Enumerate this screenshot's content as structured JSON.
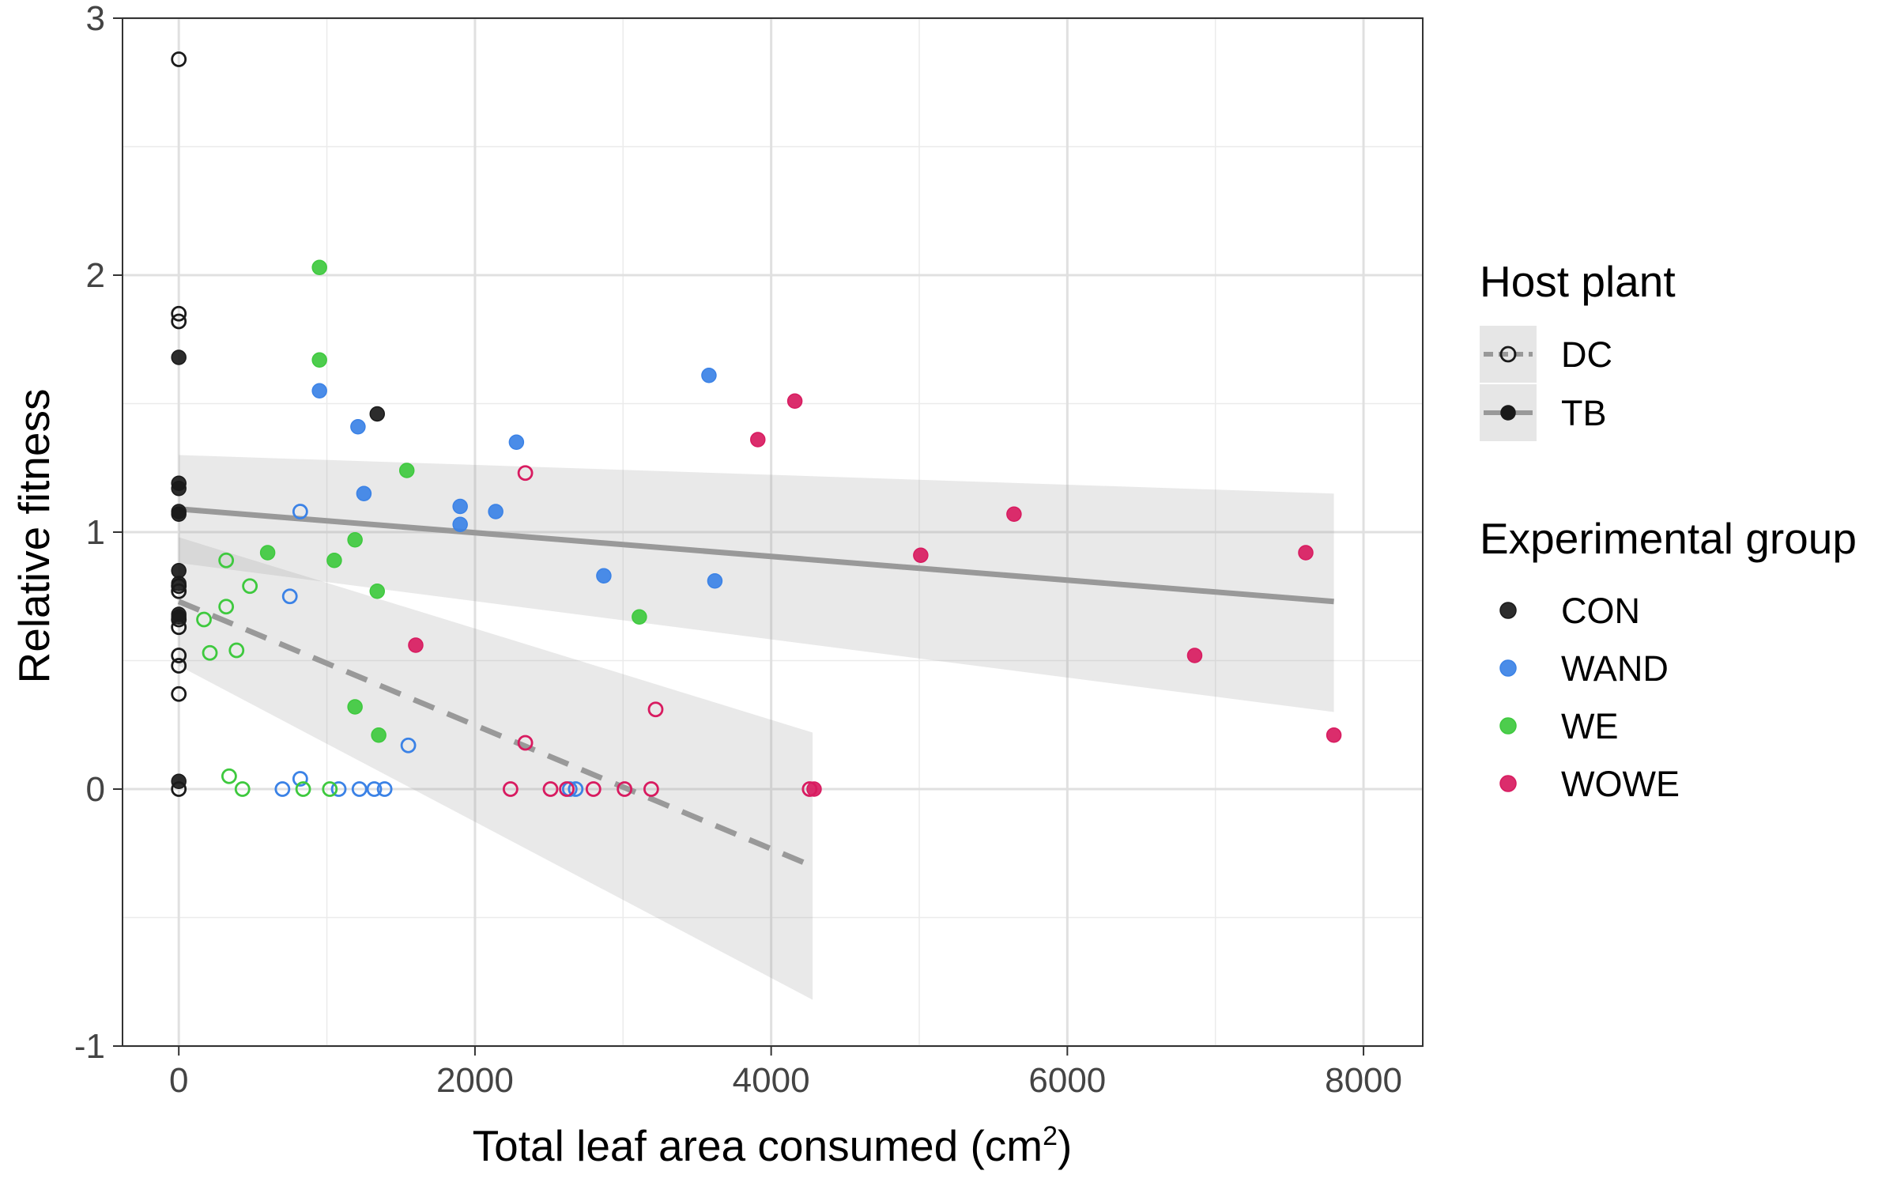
{
  "chart_data": {
    "type": "scatter",
    "xlabel": "Total leaf area consumed (cm",
    "xlabel_sup": "2",
    "xlabel_tail": ")",
    "ylabel": "Relative fitness",
    "xlim": [
      -380,
      8400
    ],
    "ylim": [
      -1,
      3
    ],
    "x_ticks": [
      0,
      2000,
      4000,
      6000,
      8000
    ],
    "x_tick_labels": [
      "0",
      "2000",
      "4000",
      "6000",
      "8000"
    ],
    "y_ticks": [
      -1,
      0,
      1,
      2,
      3
    ],
    "y_tick_labels": [
      "-1",
      "0",
      "1",
      "2",
      "3"
    ],
    "grid": true,
    "legend_position": "right",
    "legend_hostplant": {
      "title": "Host plant",
      "items": [
        {
          "label": "DC",
          "filled": false,
          "line": "dashed"
        },
        {
          "label": "TB",
          "filled": true,
          "line": "solid"
        }
      ]
    },
    "legend_group": {
      "title": "Experimental group",
      "items": [
        {
          "label": "CON",
          "color": "#1a1a1a"
        },
        {
          "label": "WAND",
          "color": "#3b82e6"
        },
        {
          "label": "WE",
          "color": "#3ec93e"
        },
        {
          "label": "WOWE",
          "color": "#d81b60"
        }
      ]
    },
    "fits": [
      {
        "host": "TB",
        "style": "solid",
        "x": [
          0,
          7800
        ],
        "y": [
          1.09,
          0.73
        ],
        "band_low": [
          0.88,
          0.3
        ],
        "band_high": [
          1.3,
          1.15
        ]
      },
      {
        "host": "DC",
        "style": "dashed",
        "x": [
          0,
          4280
        ],
        "y": [
          0.73,
          -0.3
        ],
        "band_low": [
          0.48,
          -0.82
        ],
        "band_high": [
          0.98,
          0.22
        ]
      }
    ],
    "series": [
      {
        "group": "CON",
        "host": "DC",
        "points": [
          [
            0,
            2.84
          ],
          [
            0,
            1.85
          ],
          [
            0,
            1.82
          ],
          [
            0,
            0.79
          ],
          [
            0,
            0.77
          ],
          [
            0,
            0.66
          ],
          [
            0,
            0.63
          ],
          [
            0,
            0.52
          ],
          [
            0,
            0.48
          ],
          [
            0,
            0.37
          ],
          [
            0,
            0.0
          ]
        ]
      },
      {
        "group": "CON",
        "host": "TB",
        "points": [
          [
            0,
            1.68
          ],
          [
            0,
            1.19
          ],
          [
            0,
            1.17
          ],
          [
            0,
            1.08
          ],
          [
            0,
            1.07
          ],
          [
            0,
            0.85
          ],
          [
            0,
            0.8
          ],
          [
            0,
            0.68
          ],
          [
            0,
            0.67
          ],
          [
            0,
            0.03
          ],
          [
            1340,
            1.46
          ]
        ]
      },
      {
        "group": "WAND",
        "host": "DC",
        "points": [
          [
            820,
            1.08
          ],
          [
            750,
            0.75
          ],
          [
            820,
            0.04
          ],
          [
            700,
            0.0
          ],
          [
            1080,
            0.0
          ],
          [
            1220,
            0.0
          ],
          [
            1320,
            0.0
          ],
          [
            1390,
            0.0
          ],
          [
            1550,
            0.17
          ],
          [
            2640,
            0.0
          ],
          [
            2680,
            0.0
          ]
        ]
      },
      {
        "group": "WAND",
        "host": "TB",
        "points": [
          [
            950,
            1.55
          ],
          [
            1210,
            1.41
          ],
          [
            1250,
            1.15
          ],
          [
            1900,
            1.1
          ],
          [
            1900,
            1.03
          ],
          [
            2140,
            1.08
          ],
          [
            2280,
            1.35
          ],
          [
            2870,
            0.83
          ],
          [
            3580,
            1.61
          ],
          [
            3620,
            0.81
          ]
        ]
      },
      {
        "group": "WE",
        "host": "DC",
        "points": [
          [
            320,
            0.89
          ],
          [
            480,
            0.79
          ],
          [
            320,
            0.71
          ],
          [
            170,
            0.66
          ],
          [
            390,
            0.54
          ],
          [
            210,
            0.53
          ],
          [
            340,
            0.05
          ],
          [
            430,
            0.0
          ],
          [
            840,
            0.0
          ],
          [
            1020,
            0.0
          ]
        ]
      },
      {
        "group": "WE",
        "host": "TB",
        "points": [
          [
            950,
            2.03
          ],
          [
            950,
            1.67
          ],
          [
            1540,
            1.24
          ],
          [
            1190,
            0.97
          ],
          [
            600,
            0.92
          ],
          [
            1050,
            0.89
          ],
          [
            1340,
            0.77
          ],
          [
            3110,
            0.67
          ],
          [
            1190,
            0.32
          ],
          [
            1350,
            0.21
          ]
        ]
      },
      {
        "group": "WOWE",
        "host": "DC",
        "points": [
          [
            2340,
            1.23
          ],
          [
            3220,
            0.31
          ],
          [
            2340,
            0.18
          ],
          [
            2240,
            0.0
          ],
          [
            2510,
            0.0
          ],
          [
            2620,
            0.0
          ],
          [
            2800,
            0.0
          ],
          [
            3010,
            0.0
          ],
          [
            3190,
            0.0
          ],
          [
            4260,
            0.0
          ]
        ]
      },
      {
        "group": "WOWE",
        "host": "TB",
        "points": [
          [
            4160,
            1.51
          ],
          [
            3910,
            1.36
          ],
          [
            5640,
            1.07
          ],
          [
            5010,
            0.91
          ],
          [
            7610,
            0.92
          ],
          [
            1600,
            0.56
          ],
          [
            6860,
            0.52
          ],
          [
            7800,
            0.21
          ],
          [
            4290,
            0.0
          ]
        ]
      }
    ]
  }
}
